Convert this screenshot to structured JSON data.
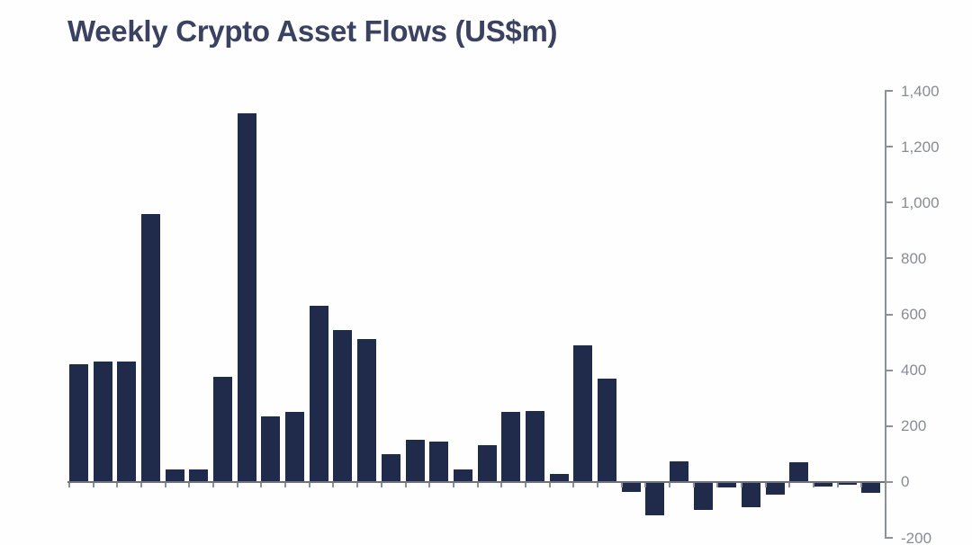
{
  "chart_data": {
    "type": "bar",
    "title": "Weekly Crypto Asset Flows (US$m)",
    "values": [
      420,
      430,
      430,
      960,
      45,
      45,
      375,
      1320,
      235,
      250,
      630,
      545,
      510,
      100,
      150,
      145,
      45,
      130,
      250,
      255,
      30,
      490,
      370,
      -35,
      -120,
      75,
      -100,
      -20,
      -90,
      -45,
      70,
      -15,
      -10,
      -40
    ],
    "xlabel": "",
    "ylabel": "",
    "ylim": [
      -200,
      1400
    ],
    "y_ticks": [
      {
        "value": 1400,
        "label": "1,400"
      },
      {
        "value": 1200,
        "label": "1,200"
      },
      {
        "value": 1000,
        "label": "1,000"
      },
      {
        "value": 800,
        "label": "800"
      },
      {
        "value": 600,
        "label": "600"
      },
      {
        "value": 400,
        "label": "400"
      },
      {
        "value": 200,
        "label": "200"
      },
      {
        "value": 0,
        "label": "0"
      },
      {
        "value": -200,
        "label": "-200"
      }
    ],
    "x_tick_labels_visible": false,
    "legend_position": "none",
    "grid": false,
    "y_axis_position": "right",
    "colors": {
      "bar": "#202b4b",
      "axis": "#8b909a",
      "zero_line": "#6d727c",
      "tick_label": "#878c95",
      "title": "#3a4161",
      "background": "#fefefe"
    }
  }
}
